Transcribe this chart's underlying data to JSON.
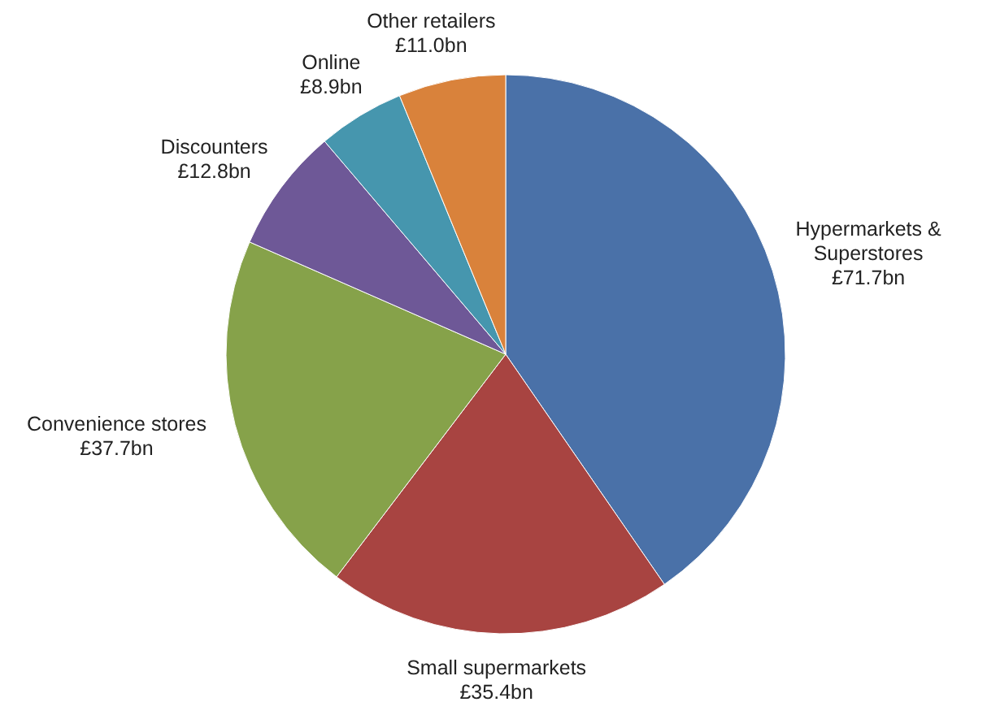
{
  "chart_data": {
    "type": "pie",
    "categories": [
      "Hypermarkets & Superstores",
      "Small supermarkets",
      "Convenience stores",
      "Discounters",
      "Online",
      "Other retailers"
    ],
    "values": [
      71.7,
      35.4,
      37.7,
      12.8,
      8.9,
      11.0
    ],
    "value_labels": [
      "£71.7bn",
      "£35.4bn",
      "£37.7bn",
      "£12.8bn",
      "£8.9bn",
      "£11.0bn"
    ],
    "colors": [
      "#4a71a8",
      "#a84441",
      "#86a24a",
      "#6e5897",
      "#4696ae",
      "#d9823b"
    ]
  }
}
